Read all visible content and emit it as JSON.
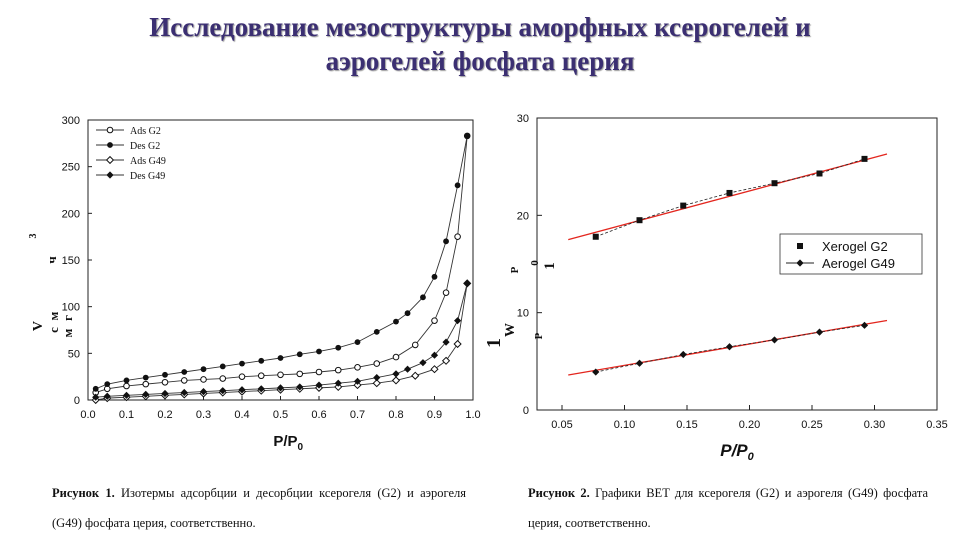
{
  "slide": {
    "title_line1": "Исследование мезоструктуры аморфных ксерогелей и",
    "title_line2": "аэрогелей фосфата церия"
  },
  "colors": {
    "title": "#3b2f72",
    "fit_line": "#e3261e",
    "series": "#111111"
  },
  "captions": {
    "left_label": "Рисунок 1.",
    "left_text": "Изотермы адсорбции и десорбции ксерогеля (G2) и аэрогеля (G49) фосфата церия, соответственно.",
    "right_label": "Рисунок 2.",
    "right_text": "Графики BET для ксерогеля (G2) и аэрогеля (G49) фосфата церия, соответственно."
  },
  "chart_data": [
    {
      "type": "line",
      "xlabel": "P/P",
      "xlabel_sub": "0",
      "ylabel_fragments": [
        "V",
        "3",
        "ч",
        "с",
        "м",
        "м",
        "г"
      ],
      "xlim": [
        0.0,
        1.0
      ],
      "ylim": [
        0,
        300
      ],
      "xticks": [
        "0.0",
        "0.1",
        "0.2",
        "0.3",
        "0.4",
        "0.5",
        "0.6",
        "0.7",
        "0.8",
        "0.9",
        "1.0"
      ],
      "yticks": [
        "0",
        "50",
        "100",
        "150",
        "200",
        "250",
        "300"
      ],
      "grid": false,
      "legend_position": "top-left",
      "series": [
        {
          "name": "Ads G2",
          "marker": "open-circle",
          "points": [
            [
              0.02,
              8
            ],
            [
              0.05,
              12
            ],
            [
              0.1,
              15
            ],
            [
              0.15,
              17
            ],
            [
              0.2,
              19
            ],
            [
              0.25,
              21
            ],
            [
              0.3,
              22
            ],
            [
              0.35,
              23
            ],
            [
              0.4,
              25
            ],
            [
              0.45,
              26
            ],
            [
              0.5,
              27
            ],
            [
              0.55,
              28
            ],
            [
              0.6,
              30
            ],
            [
              0.65,
              32
            ],
            [
              0.7,
              35
            ],
            [
              0.75,
              39
            ],
            [
              0.8,
              46
            ],
            [
              0.85,
              59
            ],
            [
              0.9,
              85
            ],
            [
              0.93,
              115
            ],
            [
              0.96,
              175
            ],
            [
              0.985,
              283
            ]
          ]
        },
        {
          "name": "Des G2",
          "marker": "filled-circle",
          "points": [
            [
              0.985,
              283
            ],
            [
              0.96,
              230
            ],
            [
              0.93,
              170
            ],
            [
              0.9,
              132
            ],
            [
              0.87,
              110
            ],
            [
              0.83,
              93
            ],
            [
              0.8,
              84
            ],
            [
              0.75,
              73
            ],
            [
              0.7,
              62
            ],
            [
              0.65,
              56
            ],
            [
              0.6,
              52
            ],
            [
              0.55,
              49
            ],
            [
              0.5,
              45
            ],
            [
              0.45,
              42
            ],
            [
              0.4,
              39
            ],
            [
              0.35,
              36
            ],
            [
              0.3,
              33
            ],
            [
              0.25,
              30
            ],
            [
              0.2,
              27
            ],
            [
              0.15,
              24
            ],
            [
              0.1,
              21
            ],
            [
              0.05,
              17
            ],
            [
              0.02,
              12
            ]
          ]
        },
        {
          "name": "Ads G49",
          "marker": "open-diamond",
          "points": [
            [
              0.02,
              0
            ],
            [
              0.05,
              2
            ],
            [
              0.1,
              3
            ],
            [
              0.15,
              4
            ],
            [
              0.2,
              5
            ],
            [
              0.25,
              6
            ],
            [
              0.3,
              7
            ],
            [
              0.35,
              8
            ],
            [
              0.4,
              9
            ],
            [
              0.45,
              10
            ],
            [
              0.5,
              11
            ],
            [
              0.55,
              12
            ],
            [
              0.6,
              13
            ],
            [
              0.65,
              14
            ],
            [
              0.7,
              16
            ],
            [
              0.75,
              18
            ],
            [
              0.8,
              21
            ],
            [
              0.85,
              26
            ],
            [
              0.9,
              33
            ],
            [
              0.93,
              42
            ],
            [
              0.96,
              60
            ],
            [
              0.985,
              125
            ]
          ]
        },
        {
          "name": "Des G49",
          "marker": "filled-diamond",
          "points": [
            [
              0.985,
              125
            ],
            [
              0.96,
              85
            ],
            [
              0.93,
              62
            ],
            [
              0.9,
              48
            ],
            [
              0.87,
              40
            ],
            [
              0.83,
              33
            ],
            [
              0.8,
              28
            ],
            [
              0.75,
              24
            ],
            [
              0.7,
              20
            ],
            [
              0.65,
              18
            ],
            [
              0.6,
              16
            ],
            [
              0.55,
              14
            ],
            [
              0.5,
              13
            ],
            [
              0.45,
              12
            ],
            [
              0.4,
              11
            ],
            [
              0.35,
              10
            ],
            [
              0.3,
              9
            ],
            [
              0.25,
              8
            ],
            [
              0.2,
              7
            ],
            [
              0.15,
              6
            ],
            [
              0.1,
              5
            ],
            [
              0.05,
              4
            ],
            [
              0.02,
              3
            ]
          ]
        }
      ]
    },
    {
      "type": "scatter",
      "xlabel": "P/P",
      "xlabel_sub": "0",
      "ylabel_fragments": [
        "1",
        "W",
        "P",
        "P",
        "0",
        "1"
      ],
      "xlim": [
        0.03,
        0.35
      ],
      "ylim": [
        0,
        30
      ],
      "xticks": [
        "0.05",
        "0.10",
        "0.15",
        "0.20",
        "0.25",
        "0.30",
        "0.35"
      ],
      "yticks": [
        "0",
        "10",
        "20",
        "30"
      ],
      "grid": false,
      "legend_position": "center-right",
      "series": [
        {
          "name": "Xerogel G2",
          "marker": "filled-square",
          "points": [
            [
              0.077,
              17.8
            ],
            [
              0.112,
              19.5
            ],
            [
              0.147,
              21.0
            ],
            [
              0.184,
              22.3
            ],
            [
              0.22,
              23.3
            ],
            [
              0.256,
              24.3
            ],
            [
              0.292,
              25.8
            ]
          ],
          "fit": [
            [
              0.055,
              17.5
            ],
            [
              0.31,
              26.3
            ]
          ]
        },
        {
          "name": "Aerogel G49",
          "marker": "filled-diamond",
          "points": [
            [
              0.077,
              3.9
            ],
            [
              0.112,
              4.8
            ],
            [
              0.147,
              5.7
            ],
            [
              0.184,
              6.5
            ],
            [
              0.22,
              7.2
            ],
            [
              0.256,
              8.0
            ],
            [
              0.292,
              8.7
            ]
          ],
          "fit": [
            [
              0.055,
              3.6
            ],
            [
              0.31,
              9.2
            ]
          ]
        }
      ]
    }
  ]
}
